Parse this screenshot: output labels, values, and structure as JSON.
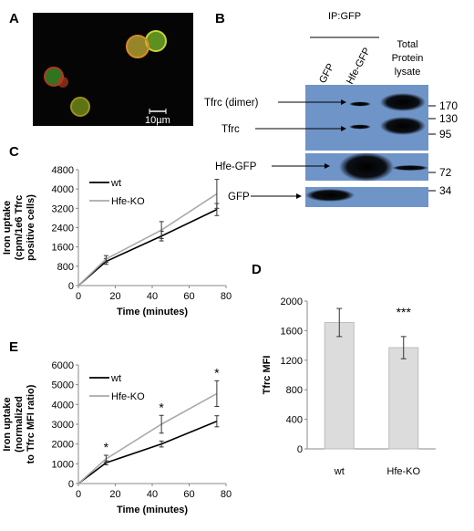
{
  "panels": {
    "A": "A",
    "B": "B",
    "C": "C",
    "D": "D",
    "E": "E"
  },
  "micrograph": {
    "scale_bar": "10µm",
    "background": "#050505",
    "cells": [
      {
        "color": "#7bbf2a",
        "outline": "#c9d238"
      },
      {
        "color": "#c6b237",
        "outline": "#d98a2a"
      },
      {
        "color": "#3f9a2a",
        "outline": "#b03a20"
      },
      {
        "color": "#7a9a1a",
        "outline": "#9c8f20"
      }
    ]
  },
  "blot": {
    "ip_label": "IP:GFP",
    "lanes": [
      "GFP",
      "Hfe-GFP",
      "Total Protein lysate"
    ],
    "total_lane_line1": "Total",
    "total_lane_line2": "Protein",
    "total_lane_line3": "lysate",
    "row_labels": [
      "Tfrc (dimer)",
      "Tfrc",
      "Hfe-GFP",
      "GFP"
    ],
    "markers": [
      "170",
      "130",
      "95",
      "72",
      "34"
    ],
    "membrane_color": "#6f94c8"
  },
  "chart_data": [
    {
      "panel": "C",
      "type": "line",
      "ylabel_lines": [
        "Iron uptake",
        "(cpm/1e6 Tfrc",
        "positive cells)"
      ],
      "xlabel": "Time (minutes)",
      "xlim": [
        0,
        80
      ],
      "ylim": [
        0,
        4800
      ],
      "xticks": [
        0,
        20,
        40,
        60,
        80
      ],
      "yticks": [
        0,
        800,
        1600,
        2400,
        3200,
        4000,
        4800
      ],
      "legend_position": "top-left",
      "series": [
        {
          "name": "wt",
          "color": "#000000",
          "x": [
            0,
            15,
            45,
            75
          ],
          "y": [
            0,
            1000,
            2050,
            3150
          ],
          "err": [
            0,
            120,
            200,
            250
          ]
        },
        {
          "name": "Hfe-KO",
          "color": "#aaaaaa",
          "x": [
            0,
            15,
            45,
            75
          ],
          "y": [
            0,
            1100,
            2300,
            3800
          ],
          "err": [
            0,
            140,
            350,
            600
          ]
        }
      ]
    },
    {
      "panel": "E",
      "type": "line",
      "ylabel_lines": [
        "Iron uptake",
        "(normalized",
        "to Tfrc MFI ratio)"
      ],
      "xlabel": "Time (minutes)",
      "xlim": [
        0,
        80
      ],
      "ylim": [
        0,
        6000
      ],
      "xticks": [
        0,
        20,
        40,
        60,
        80
      ],
      "yticks": [
        0,
        1000,
        2000,
        3000,
        4000,
        5000,
        6000
      ],
      "legend_position": "top-left",
      "annotations": [
        "*",
        "*",
        "*"
      ],
      "series": [
        {
          "name": "wt",
          "color": "#000000",
          "x": [
            0,
            15,
            45,
            75
          ],
          "y": [
            0,
            1050,
            2000,
            3150
          ],
          "err": [
            0,
            100,
            150,
            280
          ]
        },
        {
          "name": "Hfe-KO",
          "color": "#aaaaaa",
          "x": [
            0,
            15,
            45,
            75
          ],
          "y": [
            0,
            1250,
            3000,
            4550
          ],
          "err": [
            0,
            180,
            450,
            650
          ]
        }
      ]
    },
    {
      "panel": "D",
      "type": "bar",
      "ylabel": "Tfrc MFI",
      "categories": [
        "wt",
        "Hfe-KO"
      ],
      "values": [
        1710,
        1370
      ],
      "err": [
        190,
        150
      ],
      "ylim": [
        0,
        2000
      ],
      "yticks": [
        0,
        400,
        800,
        1200,
        1600,
        2000
      ],
      "annotations": [
        "***"
      ],
      "bar_color": "#dcdcdc"
    }
  ]
}
